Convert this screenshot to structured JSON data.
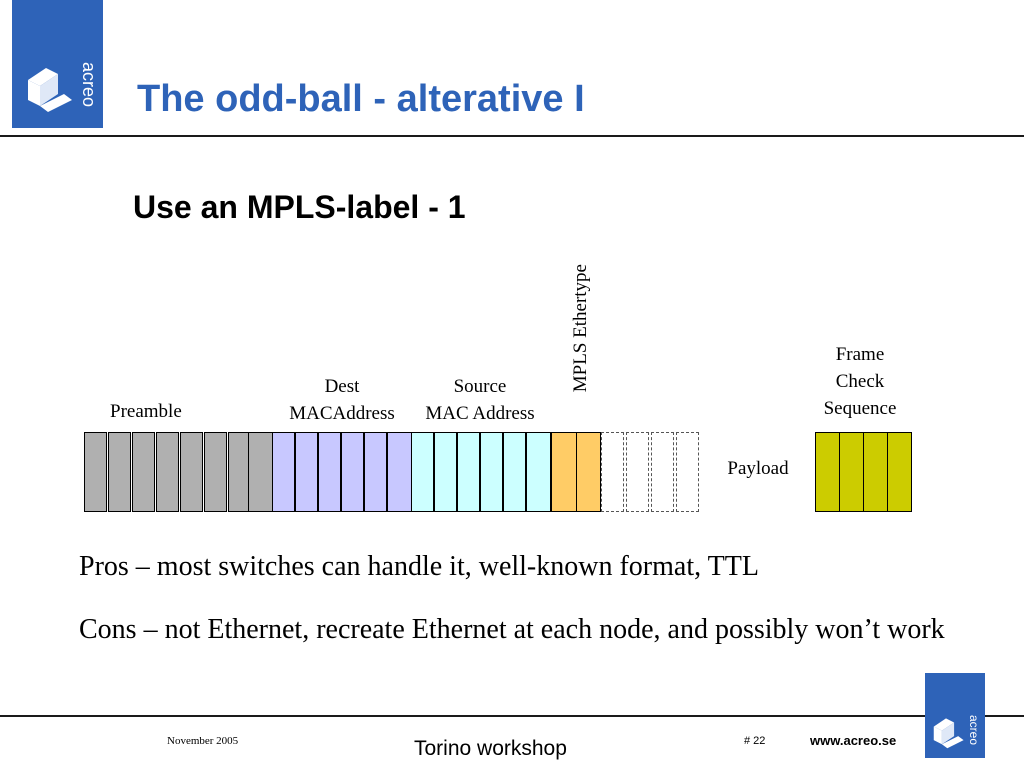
{
  "header": {
    "logo_text": "acreo",
    "title": "The odd-ball - alterative I"
  },
  "slide": {
    "subtitle": "Use an MPLS-label - 1",
    "frame": {
      "preamble_label": "Preamble",
      "dest_label_1": "Dest",
      "dest_label_2": "MACAddress",
      "source_label_1": "Source",
      "source_label_2": "MAC Address",
      "ethertype_label": "MPLS Ethertype",
      "payload_label": "Payload",
      "fcs_label_1": "Frame",
      "fcs_label_2": "Check",
      "fcs_label_3": "Sequence",
      "colors": {
        "preamble": "#b0b0b0",
        "dest": "#c8c8ff",
        "source": "#ccffff",
        "ethertype": "#ffcc66",
        "fcs": "#cccc00"
      }
    },
    "pros": "Pros – most switches can handle it, well-known format, TTL",
    "cons": "Cons – not Ethernet, recreate Ethernet at each node, and possibly won’t work"
  },
  "footer": {
    "date": "November 2005",
    "event": "Torino workshop",
    "page": "# 22",
    "website": "www.acreo.se",
    "logo_text": "acreo"
  }
}
